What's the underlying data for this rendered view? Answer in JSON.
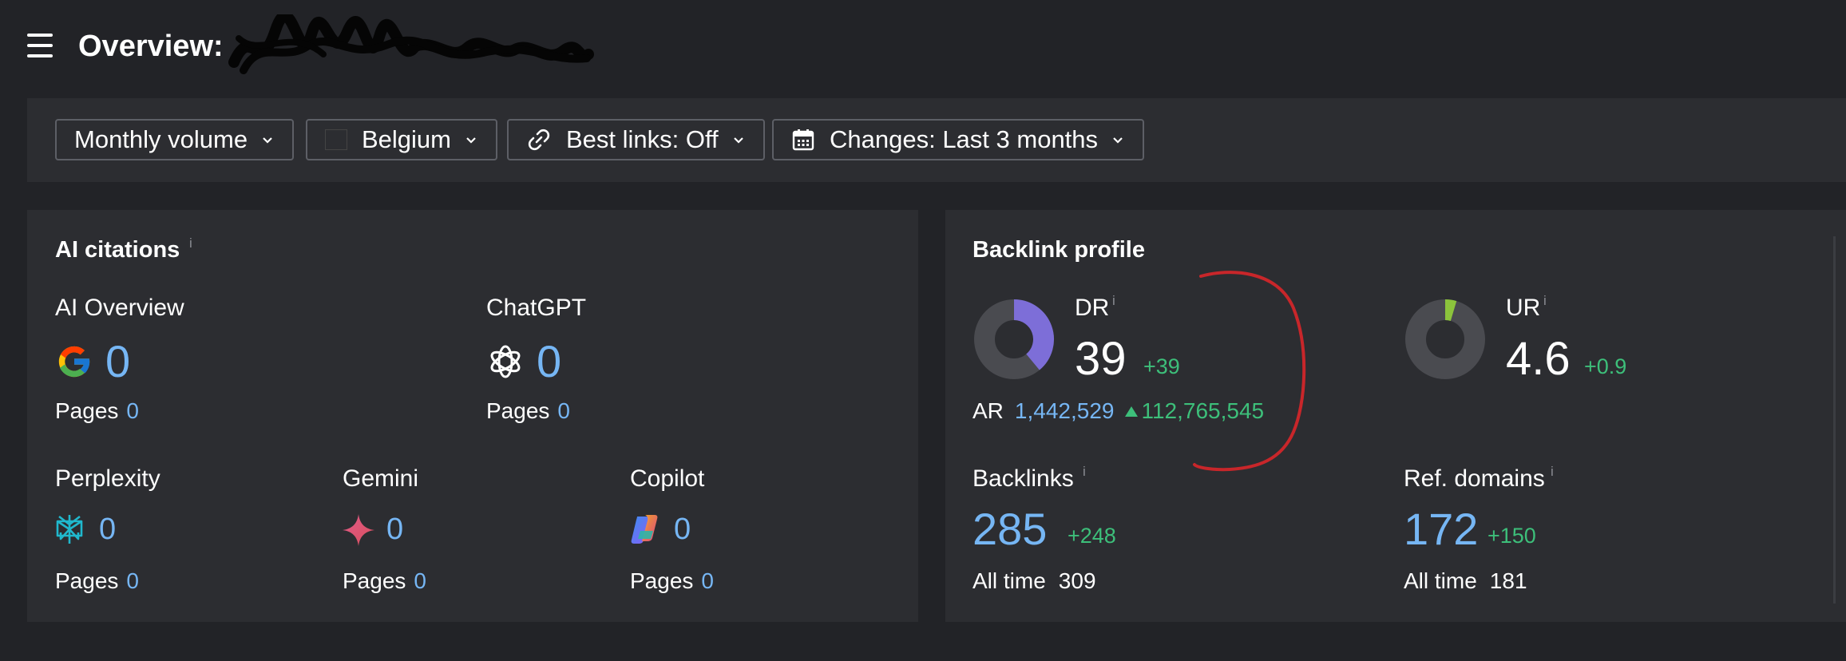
{
  "header": {
    "title": "Overview:"
  },
  "filters": {
    "volume": "Monthly volume",
    "country": "Belgium",
    "best_links": "Best links: Off",
    "changes": "Changes: Last 3 months"
  },
  "ai_citations": {
    "title": "AI citations",
    "info": "i",
    "pages_label": "Pages",
    "overview": {
      "label": "AI Overview",
      "value": "0",
      "pages": "0"
    },
    "chatgpt": {
      "label": "ChatGPT",
      "value": "0",
      "pages": "0"
    },
    "perplexity": {
      "label": "Perplexity",
      "value": "0",
      "pages": "0"
    },
    "gemini": {
      "label": "Gemini",
      "value": "0",
      "pages": "0"
    },
    "copilot": {
      "label": "Copilot",
      "value": "0",
      "pages": "0"
    }
  },
  "backlink_profile": {
    "title": "Backlink profile",
    "info": "i",
    "dr": {
      "label": "DR",
      "value": "39",
      "delta": "+39",
      "level": 0.39
    },
    "ar": {
      "label": "AR",
      "value": "1,442,529",
      "delta": "112,765,545"
    },
    "ur": {
      "label": "UR",
      "value": "4.6",
      "delta": "+0.9",
      "level": 0.046
    },
    "backlinks": {
      "label": "Backlinks",
      "value": "285",
      "delta": "+248",
      "all_time_label": "All time",
      "all_time": "309"
    },
    "ref_domains": {
      "label": "Ref. domains",
      "value": "172",
      "delta": "+150",
      "all_time_label": "All time",
      "all_time": "181"
    }
  },
  "colors": {
    "background": "#222327",
    "card": "#2c2d31",
    "link_blue": "#76b6f4",
    "positive_green": "#3dbf7a",
    "dr_purple": "#7d6ed8",
    "ur_green": "#8cc43c",
    "annotation_red": "#c8262a"
  }
}
